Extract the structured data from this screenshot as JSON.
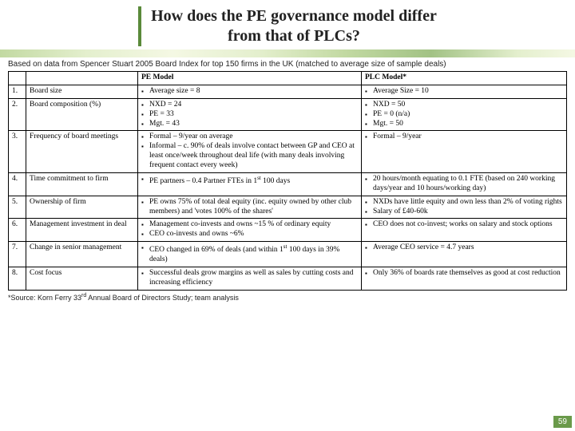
{
  "title_line1": "How does the PE governance model differ",
  "title_line2": "from that of PLCs?",
  "subtitle": "Based on data from Spencer Stuart 2005 Board Index for top 150 firms in the UK (matched to average size of sample deals)",
  "headers": {
    "pe": "PE Model",
    "plc": "PLC Model*"
  },
  "rows": [
    {
      "n": "1.",
      "cat": "Board size",
      "pe": [
        "Average size = 8"
      ],
      "plc": [
        "Average Size = 10"
      ]
    },
    {
      "n": "2.",
      "cat": "Board composition (%)",
      "pe": [
        "NXD = 24",
        "PE = 33",
        "Mgt. = 43"
      ],
      "plc": [
        "NXD = 50",
        "PE = 0 (n/a)",
        "Mgt. = 50"
      ]
    },
    {
      "n": "3.",
      "cat": "Frequency of board meetings",
      "pe": [
        "Formal – 9/year on average",
        "Informal – c. 90% of deals involve contact between GP and CEO at least once/week throughout deal life (with many deals involving frequent contact every week)"
      ],
      "plc": [
        "Formal – 9/year"
      ]
    },
    {
      "n": "4.",
      "cat": "Time commitment to firm",
      "pe": [
        "PE partners – 0.4 Partner FTEs in 1<sup>st</sup> 100 days"
      ],
      "plc": [
        "20 hours/month equating to 0.1 FTE (based on 240 working days/year and 10 hours/working day)"
      ]
    },
    {
      "n": "5.",
      "cat": "Ownership of firm",
      "pe": [
        "PE owns 75% of total deal equity (inc. equity owned by other club members) and 'votes 100% of the shares'"
      ],
      "plc": [
        "NXDs have little equity and own less than 2% of voting rights",
        "Salary of £40-60k"
      ]
    },
    {
      "n": "6.",
      "cat": "Management investment in deal",
      "pe": [
        "Management co-invests and owns ~15 % of ordinary equity",
        "CEO co-invests and owns ~6%"
      ],
      "plc": [
        "CEO does not co-invest; works on salary and stock options"
      ]
    },
    {
      "n": "7.",
      "cat": "Change in senior management",
      "pe": [
        "CEO changed in 69% of deals (and within 1<sup>st</sup> 100 days in 39% deals)"
      ],
      "plc": [
        "Average CEO service = 4.7 years"
      ]
    },
    {
      "n": "8.",
      "cat": "Cost focus",
      "pe": [
        "Successful deals grow margins as well as sales by cutting costs and increasing efficiency"
      ],
      "plc": [
        "Only 36% of boards rate themselves as good at cost reduction"
      ]
    }
  ],
  "footnote": "*Source: Korn Ferry 33<sup>rd</sup> Annual Board of Directors Study; team analysis",
  "pagenum": "59"
}
